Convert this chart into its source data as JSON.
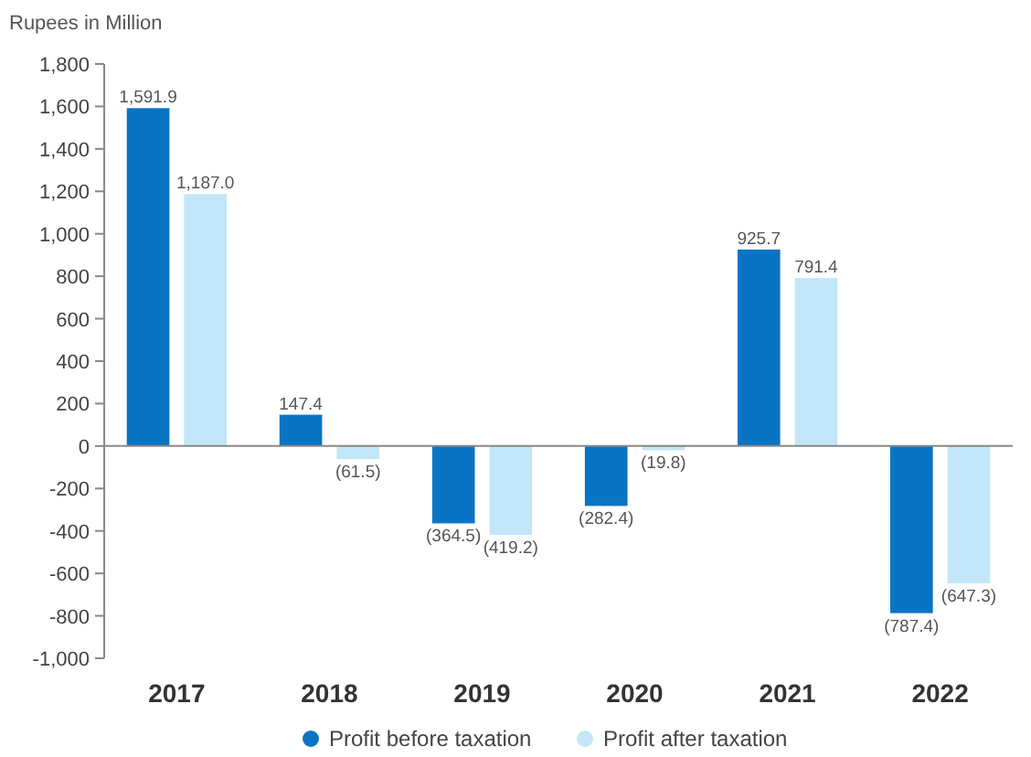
{
  "chart_data": {
    "type": "bar",
    "ylabel": "Rupees in Million",
    "categories": [
      "2017",
      "2018",
      "2019",
      "2020",
      "2021",
      "2022"
    ],
    "series": [
      {
        "name": "Profit before taxation",
        "color": "#0a74c4",
        "values": [
          1591.9,
          147.4,
          -364.5,
          -282.4,
          925.7,
          -787.4
        ],
        "value_labels": [
          "1,591.9",
          "147.4",
          "(364.5)",
          "(282.4)",
          "925.7",
          "(787.4)"
        ]
      },
      {
        "name": "Profit after taxation",
        "color": "#c2e6f7",
        "values": [
          1187.0,
          -61.5,
          -419.2,
          -19.8,
          791.4,
          -647.3
        ],
        "value_labels": [
          "1,187.0",
          "(61.5)",
          "(419.2)",
          "(19.8)",
          "791.4",
          "(647.3)"
        ]
      }
    ],
    "ylim": [
      -1000,
      1800
    ],
    "yticks": [
      {
        "value": -1000,
        "label": "-1,000"
      },
      -800,
      -600,
      -400,
      -200,
      0,
      200,
      400,
      600,
      800,
      {
        "value": 1000,
        "label": "1,000"
      },
      {
        "value": 1200,
        "label": "1,200"
      },
      {
        "value": 1400,
        "label": "1,400"
      },
      {
        "value": 1600,
        "label": "1,600"
      },
      {
        "value": 1800,
        "label": "1,800"
      }
    ],
    "legend": "bottom"
  }
}
